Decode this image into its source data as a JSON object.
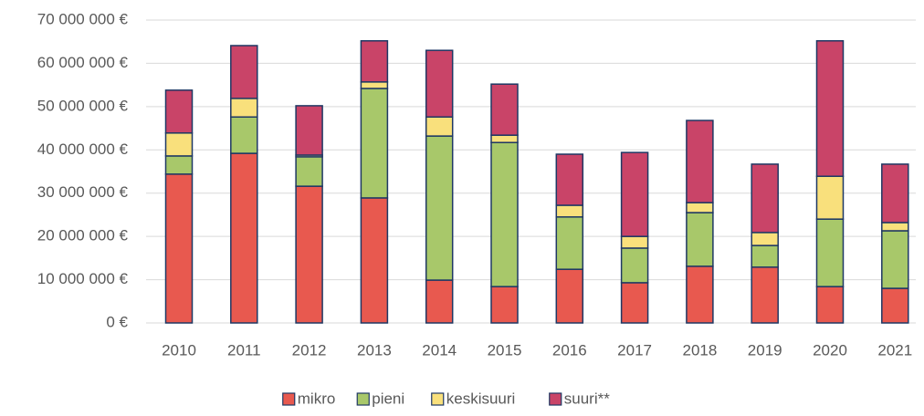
{
  "chart_data": {
    "type": "stacked_bar",
    "categories": [
      "2010",
      "2011",
      "2012",
      "2013",
      "2014",
      "2015",
      "2016",
      "2017",
      "2018",
      "2019",
      "2020",
      "2021"
    ],
    "series": [
      {
        "name": "mikro",
        "color": "#e8594f",
        "values": [
          34400000,
          39200000,
          31600000,
          28900000,
          9900000,
          8400000,
          12400000,
          9300000,
          13100000,
          12900000,
          8400000,
          8000000
        ]
      },
      {
        "name": "pieni",
        "color": "#a8c86a",
        "values": [
          4200000,
          8400000,
          6800000,
          25300000,
          33300000,
          33300000,
          12100000,
          8000000,
          12400000,
          5000000,
          15600000,
          13300000
        ]
      },
      {
        "name": "keskisuuri",
        "color": "#f9e07c",
        "values": [
          5300000,
          4300000,
          400000,
          1500000,
          4400000,
          1700000,
          2700000,
          2700000,
          2300000,
          3000000,
          9900000,
          1900000
        ]
      },
      {
        "name": "suuri**",
        "color": "#c94468",
        "values": [
          9900000,
          12200000,
          11400000,
          9500000,
          15400000,
          11800000,
          11800000,
          19400000,
          19000000,
          15800000,
          31300000,
          13500000
        ]
      }
    ],
    "ylim": [
      0,
      70000000
    ],
    "yticks": [
      {
        "value": 0,
        "label": "0 €"
      },
      {
        "value": 10000000,
        "label": "10 000 000 €"
      },
      {
        "value": 20000000,
        "label": "20 000 000 €"
      },
      {
        "value": 30000000,
        "label": "30 000 000 €"
      },
      {
        "value": 40000000,
        "label": "40 000 000 €"
      },
      {
        "value": 50000000,
        "label": "50 000 000 €"
      },
      {
        "value": 60000000,
        "label": "60 000 000 €"
      },
      {
        "value": 70000000,
        "label": "70 000 000 €"
      }
    ],
    "grid": true,
    "legend": "bottom"
  }
}
